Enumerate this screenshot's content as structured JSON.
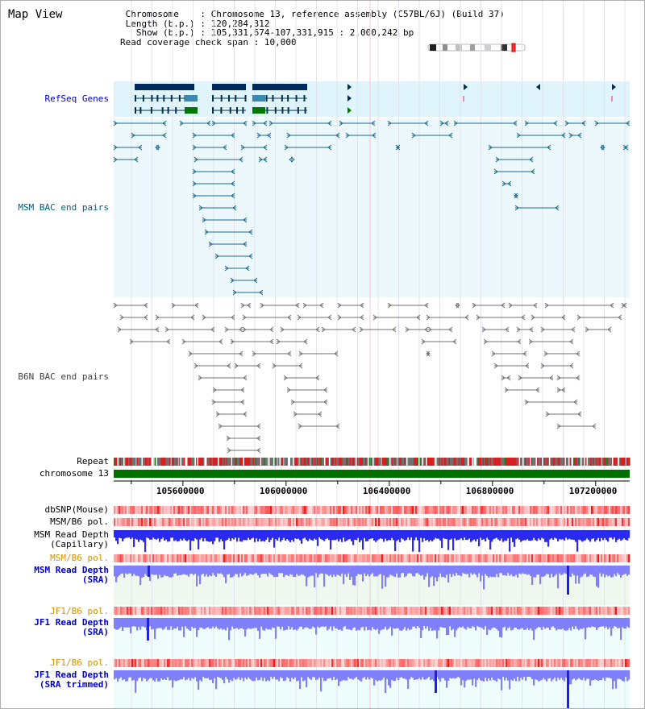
{
  "title": "Map View",
  "info": {
    "chromosome_key": "Chromosome",
    "chromosome_value": "Chromosome 13, reference assembly (C57BL/6J) (Build 37)",
    "length_key": "Length (b.p.)",
    "length_value": "120,284,312",
    "show_key": "Show (b.p.)",
    "show_value": "105,331,674-107,331,915 : 2,000,242 bp",
    "span_key": "Read coverage check span",
    "span_value": "10,000"
  },
  "view": {
    "start": 105331674,
    "end": 107331915
  },
  "axis": {
    "ticks": [
      105600000,
      106000000,
      106400000,
      106800000,
      107200000
    ]
  },
  "tracks": {
    "refseq": "RefSeq Genes",
    "msm_bac": "MSM BAC end pairs",
    "b6n_bac": "B6N BAC end pairs",
    "repeat": "Repeat",
    "chromosome": "chromosome 13",
    "dbsnp": "dbSNP(Mouse)",
    "msm_b6_pol_1": "MSM/B6 pol.",
    "msm_depth_cap_1": "MSM Read Depth",
    "msm_depth_cap_2": "(Capillary)",
    "msm_b6_pol_2": "MSM/B6 pol.",
    "msm_depth_sra_1": "MSM Read Depth",
    "msm_depth_sra_2": "(SRA)",
    "jf1_pol_1": "JF1/B6 pol.",
    "jf1_depth_1": "JF1 Read Depth",
    "jf1_depth_2": "(SRA)",
    "jf1_pol_2": "JF1/B6 pol.",
    "jf1_trim_1": "JF1 Read Depth",
    "jf1_trim_2": "(SRA trimmed)"
  },
  "colors": {
    "refseq_bg": "#e0f4fc",
    "msm_bg": "#ecf8fc",
    "gene_dark": "#002a5c",
    "gene_light": "#3a8ab0",
    "gene_green": "#007800",
    "msm_line": "#1a6a8a",
    "b6n_line": "#707070",
    "chrom_green": "#007000",
    "depth_blue": "#2020e0",
    "depth_light": "#8080ff"
  }
}
